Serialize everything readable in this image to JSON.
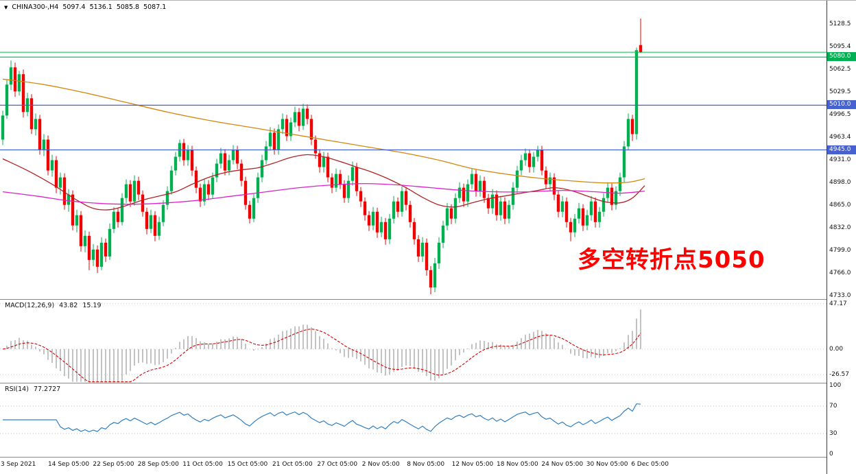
{
  "symbol_bar": {
    "symbol": "CHINA300-,H4",
    "open": "5097.4",
    "high": "5136.1",
    "low": "5085.8",
    "close": "5087.1"
  },
  "annotation": {
    "text": "多空转折点5050",
    "color": "#FF0000"
  },
  "colors": {
    "up": "#00B050",
    "down": "#EE0000",
    "macd_hist": "#B4B4B4",
    "macd_signal": "#D40000",
    "rsi": "#2E7FC2"
  },
  "chart_data": {
    "type": "candlestick",
    "title": "CHINA300-,H4",
    "timeframe": "H4",
    "x_labels": [
      "3 Sep 2021",
      "14 Sep 05:00",
      "22 Sep 05:00",
      "28 Sep 05:00",
      "11 Oct 05:00",
      "15 Oct 05:00",
      "21 Oct 05:00",
      "27 Oct 05:00",
      "2 Nov 05:00",
      "8 Nov 05:00",
      "12 Nov 05:00",
      "18 Nov 05:00",
      "24 Nov 05:00",
      "30 Nov 05:00",
      "6 Dec 05:00"
    ],
    "y_axis": {
      "range": [
        4728,
        5162
      ],
      "ticks": [
        5128.5,
        5095.4,
        5062.5,
        5029.5,
        4996.5,
        4963.4,
        4931.0,
        4898.0,
        4865.0,
        4832.0,
        4799.0,
        4766.0,
        4733.0
      ]
    },
    "levels": [
      {
        "value": 5080.0,
        "label": "5080.0",
        "color": "#00B050"
      },
      {
        "value": 5010.0,
        "label": "5010.0",
        "color": "#4761CE"
      },
      {
        "value": 4945.0,
        "label": "4945.0",
        "color": "#4761CE"
      }
    ],
    "current_price": {
      "value": 5087.1,
      "color": "#00C24A"
    },
    "moving_averages": [
      {
        "name": "ma-long-line",
        "color": "#D4860A",
        "points": [
          [
            0,
            5048
          ],
          [
            10,
            5040
          ],
          [
            20,
            5028
          ],
          [
            30,
            5014
          ],
          [
            40,
            5000
          ],
          [
            50,
            4988
          ],
          [
            60,
            4978
          ],
          [
            70,
            4968
          ],
          [
            80,
            4958
          ],
          [
            90,
            4948
          ],
          [
            98,
            4940
          ],
          [
            106,
            4930
          ],
          [
            114,
            4918
          ],
          [
            122,
            4910
          ],
          [
            130,
            4904
          ],
          [
            138,
            4900
          ],
          [
            146,
            4897
          ],
          [
            152,
            4898
          ],
          [
            156,
            4903
          ]
        ]
      },
      {
        "name": "ma-mid-line",
        "color": "#B22222",
        "points": [
          [
            0,
            4932
          ],
          [
            6,
            4915
          ],
          [
            12,
            4895
          ],
          [
            18,
            4872
          ],
          [
            22,
            4860
          ],
          [
            26,
            4858
          ],
          [
            30,
            4864
          ],
          [
            34,
            4872
          ],
          [
            38,
            4878
          ],
          [
            42,
            4884
          ],
          [
            46,
            4895
          ],
          [
            50,
            4905
          ],
          [
            54,
            4912
          ],
          [
            58,
            4916
          ],
          [
            62,
            4919
          ],
          [
            66,
            4926
          ],
          [
            70,
            4934
          ],
          [
            74,
            4938
          ],
          [
            78,
            4935
          ],
          [
            82,
            4928
          ],
          [
            86,
            4920
          ],
          [
            90,
            4912
          ],
          [
            94,
            4902
          ],
          [
            98,
            4890
          ],
          [
            102,
            4876
          ],
          [
            106,
            4865
          ],
          [
            110,
            4862
          ],
          [
            114,
            4868
          ],
          [
            118,
            4874
          ],
          [
            122,
            4878
          ],
          [
            126,
            4882
          ],
          [
            130,
            4886
          ],
          [
            134,
            4890
          ],
          [
            138,
            4886
          ],
          [
            142,
            4878
          ],
          [
            146,
            4870
          ],
          [
            150,
            4868
          ],
          [
            153,
            4875
          ],
          [
            156,
            4893
          ]
        ]
      },
      {
        "name": "ma-short-line",
        "color": "#DD22CC",
        "points": [
          [
            0,
            4884
          ],
          [
            8,
            4878
          ],
          [
            16,
            4871
          ],
          [
            24,
            4867
          ],
          [
            32,
            4866
          ],
          [
            40,
            4868
          ],
          [
            48,
            4872
          ],
          [
            56,
            4878
          ],
          [
            64,
            4884
          ],
          [
            72,
            4890
          ],
          [
            80,
            4894
          ],
          [
            88,
            4896
          ],
          [
            96,
            4894
          ],
          [
            104,
            4890
          ],
          [
            112,
            4886
          ],
          [
            120,
            4884
          ],
          [
            128,
            4884
          ],
          [
            136,
            4886
          ],
          [
            144,
            4884
          ],
          [
            150,
            4882
          ],
          [
            156,
            4885
          ]
        ]
      }
    ],
    "indicators": [
      {
        "type": "MACD",
        "label": "MACD(12,26,9)",
        "params": [
          12,
          26,
          9
        ],
        "main_value": "43.82",
        "signal_value": "15.19",
        "axis_ticks": [
          47.17,
          0,
          -26.57
        ],
        "range": [
          -35,
          52
        ]
      },
      {
        "type": "RSI",
        "label": "RSI(14)",
        "params": [
          14
        ],
        "value": "77.2727",
        "axis_ticks": [
          100,
          70,
          30,
          0
        ],
        "levels": [
          70,
          30
        ]
      }
    ],
    "ohlc": [
      [
        4960,
        5002,
        4952,
        4995
      ],
      [
        4995,
        5048,
        4990,
        5040
      ],
      [
        5040,
        5075,
        5032,
        5065
      ],
      [
        5065,
        5072,
        5022,
        5030
      ],
      [
        5030,
        5060,
        5024,
        5055
      ],
      [
        5055,
        5062,
        4992,
        5000
      ],
      [
        5000,
        5028,
        4994,
        5020
      ],
      [
        5020,
        5026,
        4968,
        4975
      ],
      [
        4975,
        4998,
        4966,
        4990
      ],
      [
        4990,
        4996,
        4938,
        4945
      ],
      [
        4945,
        4968,
        4936,
        4960
      ],
      [
        4960,
        4966,
        4908,
        4915
      ],
      [
        4915,
        4938,
        4906,
        4930
      ],
      [
        4930,
        4936,
        4882,
        4890
      ],
      [
        4890,
        4912,
        4880,
        4905
      ],
      [
        4905,
        4911,
        4858,
        4865
      ],
      [
        4865,
        4888,
        4855,
        4880
      ],
      [
        4880,
        4886,
        4828,
        4835
      ],
      [
        4835,
        4858,
        4825,
        4850
      ],
      [
        4850,
        4856,
        4797,
        4805
      ],
      [
        4805,
        4828,
        4796,
        4820
      ],
      [
        4820,
        4826,
        4770,
        4785
      ],
      [
        4785,
        4808,
        4776,
        4800
      ],
      [
        4800,
        4806,
        4766,
        4775
      ],
      [
        4775,
        4818,
        4770,
        4810
      ],
      [
        4810,
        4816,
        4782,
        4790
      ],
      [
        4790,
        4838,
        4785,
        4830
      ],
      [
        4830,
        4862,
        4824,
        4855
      ],
      [
        4855,
        4861,
        4832,
        4840
      ],
      [
        4840,
        4882,
        4835,
        4875
      ],
      [
        4875,
        4902,
        4868,
        4895
      ],
      [
        4895,
        4901,
        4862,
        4870
      ],
      [
        4870,
        4908,
        4864,
        4900
      ],
      [
        4900,
        4906,
        4872,
        4880
      ],
      [
        4880,
        4886,
        4848,
        4855
      ],
      [
        4855,
        4861,
        4822,
        4830
      ],
      [
        4830,
        4858,
        4824,
        4850
      ],
      [
        4850,
        4856,
        4812,
        4820
      ],
      [
        4820,
        4848,
        4814,
        4840
      ],
      [
        4840,
        4872,
        4834,
        4865
      ],
      [
        4865,
        4892,
        4858,
        4885
      ],
      [
        4885,
        4922,
        4880,
        4915
      ],
      [
        4915,
        4942,
        4908,
        4935
      ],
      [
        4935,
        4960,
        4928,
        4955
      ],
      [
        4955,
        4961,
        4922,
        4930
      ],
      [
        4930,
        4952,
        4922,
        4945
      ],
      [
        4945,
        4951,
        4907,
        4915
      ],
      [
        4915,
        4921,
        4882,
        4890
      ],
      [
        4890,
        4896,
        4862,
        4870
      ],
      [
        4870,
        4902,
        4864,
        4895
      ],
      [
        4895,
        4901,
        4872,
        4880
      ],
      [
        4880,
        4912,
        4874,
        4905
      ],
      [
        4905,
        4932,
        4898,
        4925
      ],
      [
        4925,
        4948,
        4918,
        4940
      ],
      [
        4940,
        4946,
        4908,
        4915
      ],
      [
        4915,
        4938,
        4908,
        4930
      ],
      [
        4930,
        4952,
        4924,
        4945
      ],
      [
        4945,
        4951,
        4917,
        4925
      ],
      [
        4925,
        4931,
        4892,
        4900
      ],
      [
        4900,
        4906,
        4858,
        4865
      ],
      [
        4865,
        4871,
        4838,
        4845
      ],
      [
        4845,
        4882,
        4840,
        4875
      ],
      [
        4875,
        4912,
        4868,
        4905
      ],
      [
        4905,
        4938,
        4898,
        4930
      ],
      [
        4930,
        4958,
        4924,
        4950
      ],
      [
        4950,
        4978,
        4944,
        4970
      ],
      [
        4970,
        4976,
        4938,
        4945
      ],
      [
        4945,
        4982,
        4938,
        4975
      ],
      [
        4975,
        4998,
        4968,
        4990
      ],
      [
        4990,
        4996,
        4958,
        4965
      ],
      [
        4965,
        4992,
        4958,
        4985
      ],
      [
        4985,
        5008,
        4978,
        5000
      ],
      [
        5000,
        5006,
        4972,
        4980
      ],
      [
        4980,
        5012,
        4974,
        5005
      ],
      [
        5005,
        5011,
        4982,
        4990
      ],
      [
        4990,
        4996,
        4952,
        4960
      ],
      [
        4960,
        4966,
        4932,
        4940
      ],
      [
        4940,
        4946,
        4912,
        4920
      ],
      [
        4920,
        4942,
        4912,
        4935
      ],
      [
        4935,
        4941,
        4898,
        4905
      ],
      [
        4905,
        4911,
        4882,
        4890
      ],
      [
        4890,
        4918,
        4884,
        4910
      ],
      [
        4910,
        4916,
        4888,
        4895
      ],
      [
        4895,
        4901,
        4868,
        4875
      ],
      [
        4875,
        4908,
        4868,
        4900
      ],
      [
        4900,
        4928,
        4893,
        4920
      ],
      [
        4920,
        4926,
        4878,
        4885
      ],
      [
        4885,
        4891,
        4862,
        4870
      ],
      [
        4870,
        4876,
        4842,
        4850
      ],
      [
        4850,
        4856,
        4827,
        4835
      ],
      [
        4835,
        4862,
        4828,
        4855
      ],
      [
        4855,
        4861,
        4817,
        4825
      ],
      [
        4825,
        4848,
        4818,
        4840
      ],
      [
        4840,
        4846,
        4807,
        4815
      ],
      [
        4815,
        4852,
        4808,
        4845
      ],
      [
        4845,
        4878,
        4838,
        4870
      ],
      [
        4870,
        4876,
        4847,
        4855
      ],
      [
        4855,
        4892,
        4848,
        4885
      ],
      [
        4885,
        4891,
        4857,
        4865
      ],
      [
        4865,
        4871,
        4832,
        4840
      ],
      [
        4840,
        4846,
        4807,
        4815
      ],
      [
        4815,
        4821,
        4782,
        4790
      ],
      [
        4790,
        4818,
        4782,
        4810
      ],
      [
        4810,
        4816,
        4762,
        4770
      ],
      [
        4770,
        4776,
        4735,
        4745
      ],
      [
        4745,
        4788,
        4738,
        4780
      ],
      [
        4780,
        4818,
        4772,
        4810
      ],
      [
        4810,
        4842,
        4802,
        4835
      ],
      [
        4835,
        4868,
        4828,
        4860
      ],
      [
        4860,
        4866,
        4837,
        4845
      ],
      [
        4845,
        4882,
        4838,
        4875
      ],
      [
        4875,
        4898,
        4868,
        4890
      ],
      [
        4890,
        4896,
        4862,
        4870
      ],
      [
        4870,
        4902,
        4862,
        4895
      ],
      [
        4895,
        4918,
        4888,
        4910
      ],
      [
        4910,
        4916,
        4877,
        4885
      ],
      [
        4885,
        4908,
        4877,
        4900
      ],
      [
        4900,
        4906,
        4868,
        4875
      ],
      [
        4875,
        4881,
        4852,
        4860
      ],
      [
        4860,
        4888,
        4852,
        4880
      ],
      [
        4880,
        4886,
        4842,
        4850
      ],
      [
        4850,
        4878,
        4842,
        4870
      ],
      [
        4870,
        4876,
        4837,
        4845
      ],
      [
        4845,
        4872,
        4838,
        4865
      ],
      [
        4865,
        4898,
        4858,
        4890
      ],
      [
        4890,
        4922,
        4882,
        4915
      ],
      [
        4915,
        4938,
        4908,
        4930
      ],
      [
        4930,
        4947,
        4922,
        4940
      ],
      [
        4940,
        4946,
        4912,
        4920
      ],
      [
        4920,
        4942,
        4912,
        4935
      ],
      [
        4935,
        4951,
        4928,
        4945
      ],
      [
        4945,
        4951,
        4908,
        4915
      ],
      [
        4915,
        4921,
        4888,
        4895
      ],
      [
        4895,
        4912,
        4885,
        4905
      ],
      [
        4905,
        4911,
        4872,
        4880
      ],
      [
        4880,
        4886,
        4847,
        4855
      ],
      [
        4855,
        4878,
        4847,
        4870
      ],
      [
        4870,
        4876,
        4832,
        4840
      ],
      [
        4840,
        4846,
        4812,
        4825
      ],
      [
        4825,
        4852,
        4818,
        4845
      ],
      [
        4845,
        4868,
        4838,
        4860
      ],
      [
        4860,
        4866,
        4827,
        4835
      ],
      [
        4835,
        4858,
        4828,
        4850
      ],
      [
        4850,
        4878,
        4842,
        4870
      ],
      [
        4870,
        4876,
        4832,
        4840
      ],
      [
        4840,
        4862,
        4832,
        4855
      ],
      [
        4855,
        4882,
        4848,
        4875
      ],
      [
        4875,
        4898,
        4868,
        4890
      ],
      [
        4890,
        4896,
        4857,
        4865
      ],
      [
        4865,
        4892,
        4858,
        4885
      ],
      [
        4885,
        4912,
        4878,
        4905
      ],
      [
        4905,
        4958,
        4898,
        4950
      ],
      [
        4950,
        4998,
        4944,
        4990
      ],
      [
        4990,
        4996,
        4958,
        4968
      ],
      [
        4968,
        5094,
        4960,
        5090
      ],
      [
        5097.4,
        5136.1,
        5085.8,
        5087.1
      ]
    ]
  }
}
